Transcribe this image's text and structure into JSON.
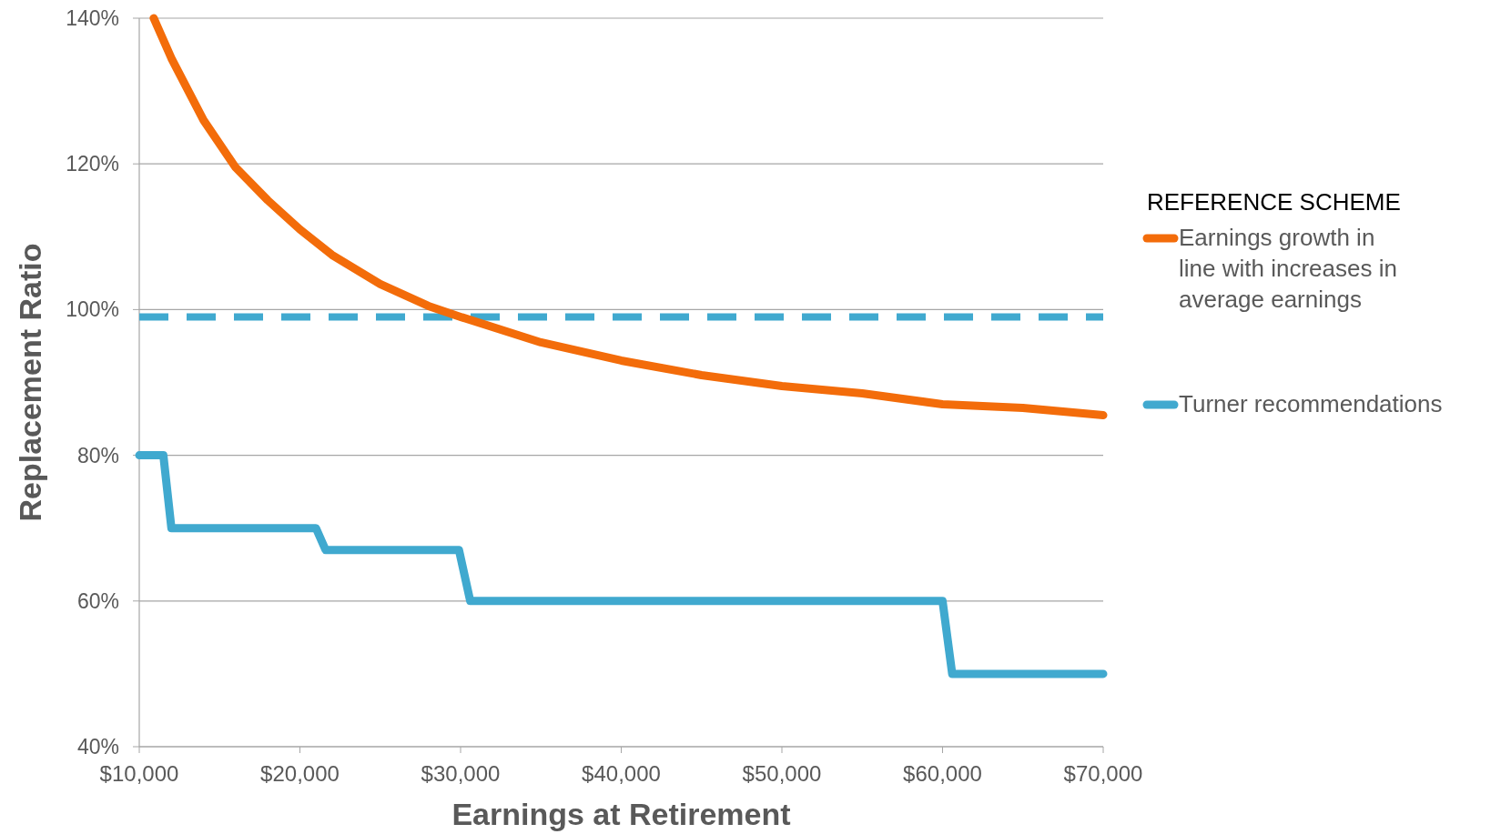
{
  "chart_data": {
    "type": "line",
    "xlabel": "Earnings at Retirement",
    "ylabel": "Replacement Ratio",
    "legend_title": "REFERENCE SCHEME",
    "legend": "right",
    "grid": "y",
    "marker": "none",
    "xlim": [
      10000,
      70000
    ],
    "xticks": [
      {
        "value": 10000,
        "label": "$10,000"
      },
      {
        "value": 20000,
        "label": "$20,000"
      },
      {
        "value": 30000,
        "label": "$30,000"
      },
      {
        "value": 40000,
        "label": "$40,000"
      },
      {
        "value": 50000,
        "label": "$50,000"
      },
      {
        "value": 60000,
        "label": "$60,000"
      },
      {
        "value": 70000,
        "label": "$70,000"
      }
    ],
    "ylim": [
      40,
      140
    ],
    "yticks": [
      {
        "value": 40,
        "label": "40%"
      },
      {
        "value": 60,
        "label": "60%"
      },
      {
        "value": 80,
        "label": "80%"
      },
      {
        "value": 100,
        "label": "100%"
      },
      {
        "value": 120,
        "label": "120%"
      },
      {
        "value": 140,
        "label": "140%"
      }
    ],
    "ref_lines": [
      {
        "axis": "y",
        "value": 99,
        "color": "#40a9cf",
        "line_style": "dashed"
      }
    ],
    "series": [
      {
        "name": "Earnings growth in line with increases in average earnings",
        "color": "#f36c0a",
        "x": [
          10900,
          12000,
          14000,
          16000,
          18000,
          20000,
          22000,
          25000,
          28000,
          30000,
          35000,
          40000,
          45000,
          50000,
          55000,
          60000,
          65000,
          70000
        ],
        "values": [
          140,
          134.5,
          126,
          119.5,
          115,
          111,
          107.5,
          103.5,
          100.5,
          99,
          95.5,
          93,
          91,
          89.5,
          88.5,
          87,
          86.5,
          85.5
        ]
      },
      {
        "name": "Turner recommendations",
        "color": "#40a9cf",
        "x": [
          10000,
          11500,
          12000,
          21000,
          21600,
          29900,
          30600,
          60000,
          60600,
          70000
        ],
        "values": [
          80,
          80,
          70,
          70,
          67,
          67,
          60,
          60,
          50,
          50
        ]
      }
    ]
  }
}
